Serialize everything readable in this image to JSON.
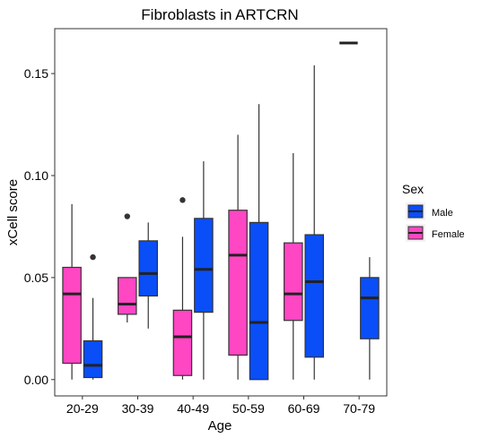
{
  "chart_data": {
    "type": "boxplot",
    "title": "Fibroblasts in ARTCRN",
    "xlabel": "Age",
    "ylabel": "xCell score",
    "ylim": [
      -0.008,
      0.172
    ],
    "yticks": [
      0.0,
      0.05,
      0.1,
      0.15
    ],
    "ytick_labels": [
      "0.00",
      "0.05",
      "0.10",
      "0.15"
    ],
    "categories": [
      "20-29",
      "30-39",
      "40-49",
      "50-59",
      "60-69",
      "70-79"
    ],
    "grid": false,
    "legend": {
      "title": "Sex",
      "position": "right",
      "entries": [
        {
          "name": "Male",
          "color": "#0a4ef8"
        },
        {
          "name": "Female",
          "color": "#ff46c3"
        }
      ]
    },
    "series": [
      {
        "name": "Female",
        "color": "#ff46c3",
        "boxes": [
          {
            "category": "20-29",
            "min": 0.0,
            "q1": 0.008,
            "median": 0.042,
            "q3": 0.055,
            "max": 0.086,
            "outliers": []
          },
          {
            "category": "30-39",
            "min": 0.028,
            "q1": 0.032,
            "median": 0.037,
            "q3": 0.05,
            "max": 0.05,
            "outliers": [
              0.08
            ]
          },
          {
            "category": "40-49",
            "min": 0.0,
            "q1": 0.002,
            "median": 0.021,
            "q3": 0.034,
            "max": 0.07,
            "outliers": [
              0.088
            ]
          },
          {
            "category": "50-59",
            "min": 0.0,
            "q1": 0.012,
            "median": 0.061,
            "q3": 0.083,
            "max": 0.12,
            "outliers": []
          },
          {
            "category": "60-69",
            "min": 0.0,
            "q1": 0.029,
            "median": 0.042,
            "q3": 0.067,
            "max": 0.111,
            "outliers": []
          }
        ]
      },
      {
        "name": "Male",
        "color": "#0a4ef8",
        "boxes": [
          {
            "category": "20-29",
            "min": 0.0,
            "q1": 0.001,
            "median": 0.007,
            "q3": 0.019,
            "max": 0.04,
            "outliers": [
              0.06
            ]
          },
          {
            "category": "30-39",
            "min": 0.025,
            "q1": 0.041,
            "median": 0.052,
            "q3": 0.068,
            "max": 0.077,
            "outliers": []
          },
          {
            "category": "40-49",
            "min": 0.0,
            "q1": 0.033,
            "median": 0.054,
            "q3": 0.079,
            "max": 0.107,
            "outliers": []
          },
          {
            "category": "50-59",
            "min": 0.0,
            "q1": 0.0,
            "median": 0.028,
            "q3": 0.077,
            "max": 0.135,
            "outliers": []
          },
          {
            "category": "60-69",
            "min": 0.0,
            "q1": 0.011,
            "median": 0.048,
            "q3": 0.071,
            "max": 0.154,
            "outliers": []
          },
          {
            "category": "70-79",
            "min": 0.0,
            "q1": 0.02,
            "median": 0.04,
            "q3": 0.05,
            "max": 0.06,
            "outliers": []
          }
        ]
      }
    ],
    "single_values": [
      {
        "category": "70-79",
        "series": "Female",
        "value": 0.165
      }
    ]
  }
}
